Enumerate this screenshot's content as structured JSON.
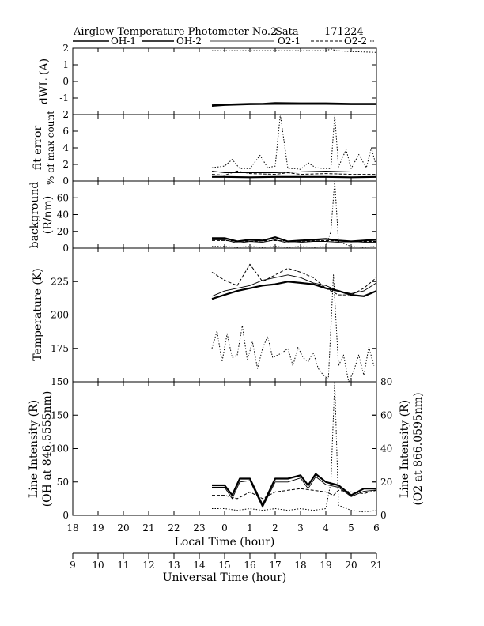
{
  "header": {
    "instrument": "Airglow Temperature Photometer No.2",
    "site": "Sata",
    "date": "171224",
    "legend": [
      "OH-1",
      "OH-2",
      "O2-1",
      "O2-2"
    ]
  },
  "chart_data": [
    {
      "type": "line",
      "panel": "dwl",
      "ylabel": "dWL (A)",
      "ylim": [
        -2,
        2
      ],
      "yticks": [
        "2",
        "1",
        "0",
        "-1",
        "-2"
      ],
      "grid": false,
      "series": [
        {
          "name": "OH-1",
          "style": "solid-thick",
          "x": [
            23.5,
            24,
            25,
            25.5,
            26,
            27,
            28,
            29,
            30
          ],
          "y": [
            -1.45,
            -1.4,
            -1.35,
            -1.35,
            -1.3,
            -1.32,
            -1.32,
            -1.35,
            -1.35
          ]
        },
        {
          "name": "OH-2",
          "style": "solid-thin",
          "x": [
            23.5,
            24,
            25,
            26,
            27,
            28,
            29,
            30
          ],
          "y": [
            -1.5,
            -1.45,
            -1.4,
            -1.38,
            -1.38,
            -1.38,
            -1.4,
            -1.4
          ]
        },
        {
          "name": "O2-1",
          "style": "dashed",
          "x": [
            23.5,
            24,
            25,
            26,
            27,
            28,
            29,
            30
          ],
          "y": [
            -1.42,
            -1.4,
            -1.35,
            -1.33,
            -1.33,
            -1.35,
            -1.37,
            -1.37
          ]
        },
        {
          "name": "O2-2",
          "style": "dotted",
          "x": [
            23.5,
            24,
            25,
            26,
            27,
            28,
            28.2,
            28.4,
            29,
            30
          ],
          "y": [
            1.85,
            1.85,
            1.85,
            1.85,
            1.85,
            1.85,
            1.95,
            1.85,
            1.8,
            1.75
          ]
        }
      ]
    },
    {
      "type": "line",
      "panel": "fit-error",
      "ylabel": "fit error % of max count",
      "ylim": [
        0,
        8
      ],
      "yticks": [
        "6",
        "4",
        "2",
        "0"
      ],
      "grid": false,
      "series": [
        {
          "name": "OH-1",
          "style": "solid-thick",
          "x": [
            23.5,
            24,
            25,
            26,
            27,
            28,
            29,
            30
          ],
          "y": [
            0.5,
            0.5,
            0.45,
            0.5,
            0.5,
            0.5,
            0.45,
            0.5
          ]
        },
        {
          "name": "OH-2",
          "style": "solid-thin",
          "x": [
            23.5,
            24,
            25,
            26,
            27,
            28,
            29,
            30
          ],
          "y": [
            1.2,
            1.0,
            1.0,
            1.0,
            1.1,
            1.2,
            1.1,
            1.1
          ]
        },
        {
          "name": "O2-1",
          "style": "dashed",
          "x": [
            23.5,
            24,
            24.5,
            25,
            26,
            26.5,
            27,
            28,
            29,
            30
          ],
          "y": [
            0.8,
            0.7,
            1.2,
            0.9,
            0.8,
            1.0,
            0.8,
            0.9,
            0.8,
            0.8
          ]
        },
        {
          "name": "O2-2",
          "style": "dotted",
          "x": [
            23.5,
            24,
            24.3,
            24.6,
            25,
            25.4,
            25.7,
            26,
            26.2,
            26.5,
            26.8,
            27,
            27.3,
            27.6,
            28,
            28.2,
            28.35,
            28.5,
            28.8,
            29,
            29.3,
            29.6,
            29.8,
            30
          ],
          "y": [
            1.6,
            1.8,
            2.6,
            1.5,
            1.5,
            3.1,
            1.6,
            1.8,
            8.0,
            1.5,
            1.5,
            1.4,
            2.2,
            1.6,
            1.5,
            1.5,
            8.0,
            1.7,
            3.8,
            1.5,
            3.2,
            1.6,
            4.0,
            1.7
          ]
        }
      ]
    },
    {
      "type": "line",
      "panel": "background",
      "ylabel": "background (R/nm)",
      "ylim": [
        0,
        80
      ],
      "yticks": [
        "60",
        "40",
        "20",
        "0"
      ],
      "grid": false,
      "series": [
        {
          "name": "OH-1",
          "style": "solid-thick",
          "x": [
            23.5,
            24,
            24.5,
            25,
            25.5,
            26,
            26.5,
            27,
            27.5,
            28,
            28.5,
            29,
            29.5,
            30
          ],
          "y": [
            12,
            12,
            8,
            10,
            9,
            13,
            8,
            9,
            10,
            11,
            9,
            8,
            9,
            10
          ]
        },
        {
          "name": "OH-2",
          "style": "solid-thin",
          "x": [
            23.5,
            24,
            24.5,
            25,
            25.5,
            26,
            26.5,
            27,
            27.5,
            28,
            28.5,
            29,
            29.5,
            30
          ],
          "y": [
            10,
            10,
            6,
            8,
            7,
            10,
            6,
            7,
            8,
            8,
            7,
            6,
            7,
            7
          ]
        },
        {
          "name": "O2-1",
          "style": "dashed",
          "x": [
            23.5,
            24,
            25,
            26,
            27,
            28,
            29,
            30
          ],
          "y": [
            9,
            9,
            8,
            9,
            8,
            9,
            8,
            8
          ]
        },
        {
          "name": "O2-2",
          "style": "dotted",
          "x": [
            23.5,
            24,
            24.5,
            25,
            25.5,
            26,
            26.5,
            27,
            27.5,
            28,
            28.2,
            28.35,
            28.5,
            29,
            29.5,
            30
          ],
          "y": [
            2,
            2,
            1,
            2,
            1,
            2,
            1,
            2,
            1,
            2,
            20,
            80,
            8,
            2,
            1,
            2
          ]
        }
      ]
    },
    {
      "type": "line",
      "panel": "temperature",
      "ylabel": "Temperature (K)",
      "ylim": [
        150,
        250
      ],
      "yticks": [
        "225",
        "200",
        "175",
        "150"
      ],
      "grid": false,
      "series": [
        {
          "name": "OH-1",
          "style": "solid-thick",
          "x": [
            23.5,
            24,
            24.5,
            25,
            25.5,
            26,
            26.5,
            27,
            27.5,
            28,
            28.5,
            29,
            29.5,
            30
          ],
          "y": [
            212,
            215,
            218,
            220,
            222,
            223,
            225,
            224,
            223,
            220,
            218,
            215,
            214,
            218
          ]
        },
        {
          "name": "OH-2",
          "style": "solid-thin",
          "x": [
            23.5,
            24,
            24.5,
            25,
            25.5,
            26,
            26.5,
            27,
            27.5,
            28,
            28.5,
            29,
            29.5,
            30
          ],
          "y": [
            214,
            218,
            220,
            222,
            226,
            228,
            230,
            228,
            224,
            222,
            218,
            216,
            218,
            224
          ]
        },
        {
          "name": "O2-1",
          "style": "dashed",
          "x": [
            23.5,
            24,
            24.5,
            25,
            25.5,
            26,
            26.5,
            27,
            27.5,
            28,
            28.5,
            29,
            29.5,
            30
          ],
          "y": [
            232,
            226,
            222,
            238,
            225,
            230,
            235,
            232,
            228,
            220,
            215,
            215,
            220,
            228
          ]
        },
        {
          "name": "O2-2",
          "style": "dotted",
          "x": [
            23.5,
            23.7,
            23.9,
            24.1,
            24.3,
            24.5,
            24.7,
            24.9,
            25.1,
            25.3,
            25.5,
            25.7,
            25.9,
            26.1,
            26.3,
            26.5,
            26.7,
            26.9,
            27.1,
            27.3,
            27.5,
            27.7,
            27.9,
            28.1,
            28.3,
            28.5,
            28.7,
            28.9,
            29.1,
            29.3,
            29.5,
            29.7,
            29.9
          ],
          "y": [
            175,
            188,
            165,
            186,
            168,
            170,
            192,
            166,
            180,
            160,
            175,
            184,
            168,
            170,
            172,
            175,
            162,
            176,
            168,
            165,
            172,
            160,
            155,
            152,
            230,
            162,
            170,
            150,
            158,
            170,
            155,
            176,
            162
          ]
        }
      ]
    },
    {
      "type": "line",
      "panel": "line-intensity",
      "ylabel": "Line Intensity (R) (OH at 846.5555nm)",
      "ylabel_right": "Line Intensity (R) (O2 at 866.0595nm)",
      "ylim": [
        0,
        200
      ],
      "ylim_right": [
        0,
        80
      ],
      "yticks": [
        "150",
        "100",
        "50",
        "0"
      ],
      "yticks_right": [
        "80",
        "60",
        "40",
        "20",
        "0"
      ],
      "xlabel": "Local Time (hour)",
      "xlabel_secondary": "Universal Time (hour)",
      "xlim": [
        18,
        30
      ],
      "xticks": [
        "18",
        "19",
        "20",
        "21",
        "22",
        "23",
        "0",
        "1",
        "2",
        "3",
        "4",
        "5",
        "6"
      ],
      "xticks_secondary": [
        "9",
        "10",
        "11",
        "12",
        "13",
        "14",
        "15",
        "16",
        "17",
        "18",
        "19",
        "20",
        "21"
      ],
      "grid": false,
      "series": [
        {
          "name": "OH-1",
          "style": "solid-thick",
          "x": [
            23.5,
            24,
            24.3,
            24.6,
            25,
            25.5,
            26,
            26.5,
            27,
            27.3,
            27.6,
            28,
            28.5,
            29,
            29.5,
            30
          ],
          "y": [
            45,
            45,
            30,
            55,
            55,
            15,
            55,
            55,
            60,
            45,
            62,
            50,
            45,
            30,
            40,
            40
          ]
        },
        {
          "name": "OH-2",
          "style": "solid-thin",
          "x": [
            23.5,
            24,
            24.3,
            24.6,
            25,
            25.5,
            26,
            26.5,
            27,
            27.3,
            27.6,
            28,
            28.5,
            29,
            29.5,
            30
          ],
          "y": [
            42,
            42,
            25,
            50,
            52,
            12,
            50,
            50,
            56,
            40,
            58,
            46,
            42,
            28,
            36,
            38
          ]
        },
        {
          "name": "O2-1",
          "style": "dashed",
          "x": [
            23.5,
            24,
            24.5,
            25,
            25.5,
            26,
            26.5,
            27,
            27.5,
            28,
            28.3,
            28.5,
            29,
            29.5,
            30
          ],
          "y": [
            12,
            12,
            10,
            14,
            10,
            14,
            15,
            16,
            15,
            14,
            12,
            15,
            14,
            13,
            15
          ]
        },
        {
          "name": "O2-2",
          "style": "dotted",
          "x": [
            23.5,
            24,
            24.5,
            25,
            25.5,
            26,
            26.5,
            27,
            27.5,
            28,
            28.2,
            28.35,
            28.5,
            29,
            29.5,
            30
          ],
          "y": [
            4,
            4,
            3,
            4,
            3,
            4,
            3,
            4,
            3,
            4,
            20,
            80,
            6,
            3,
            2,
            3
          ]
        }
      ]
    }
  ]
}
